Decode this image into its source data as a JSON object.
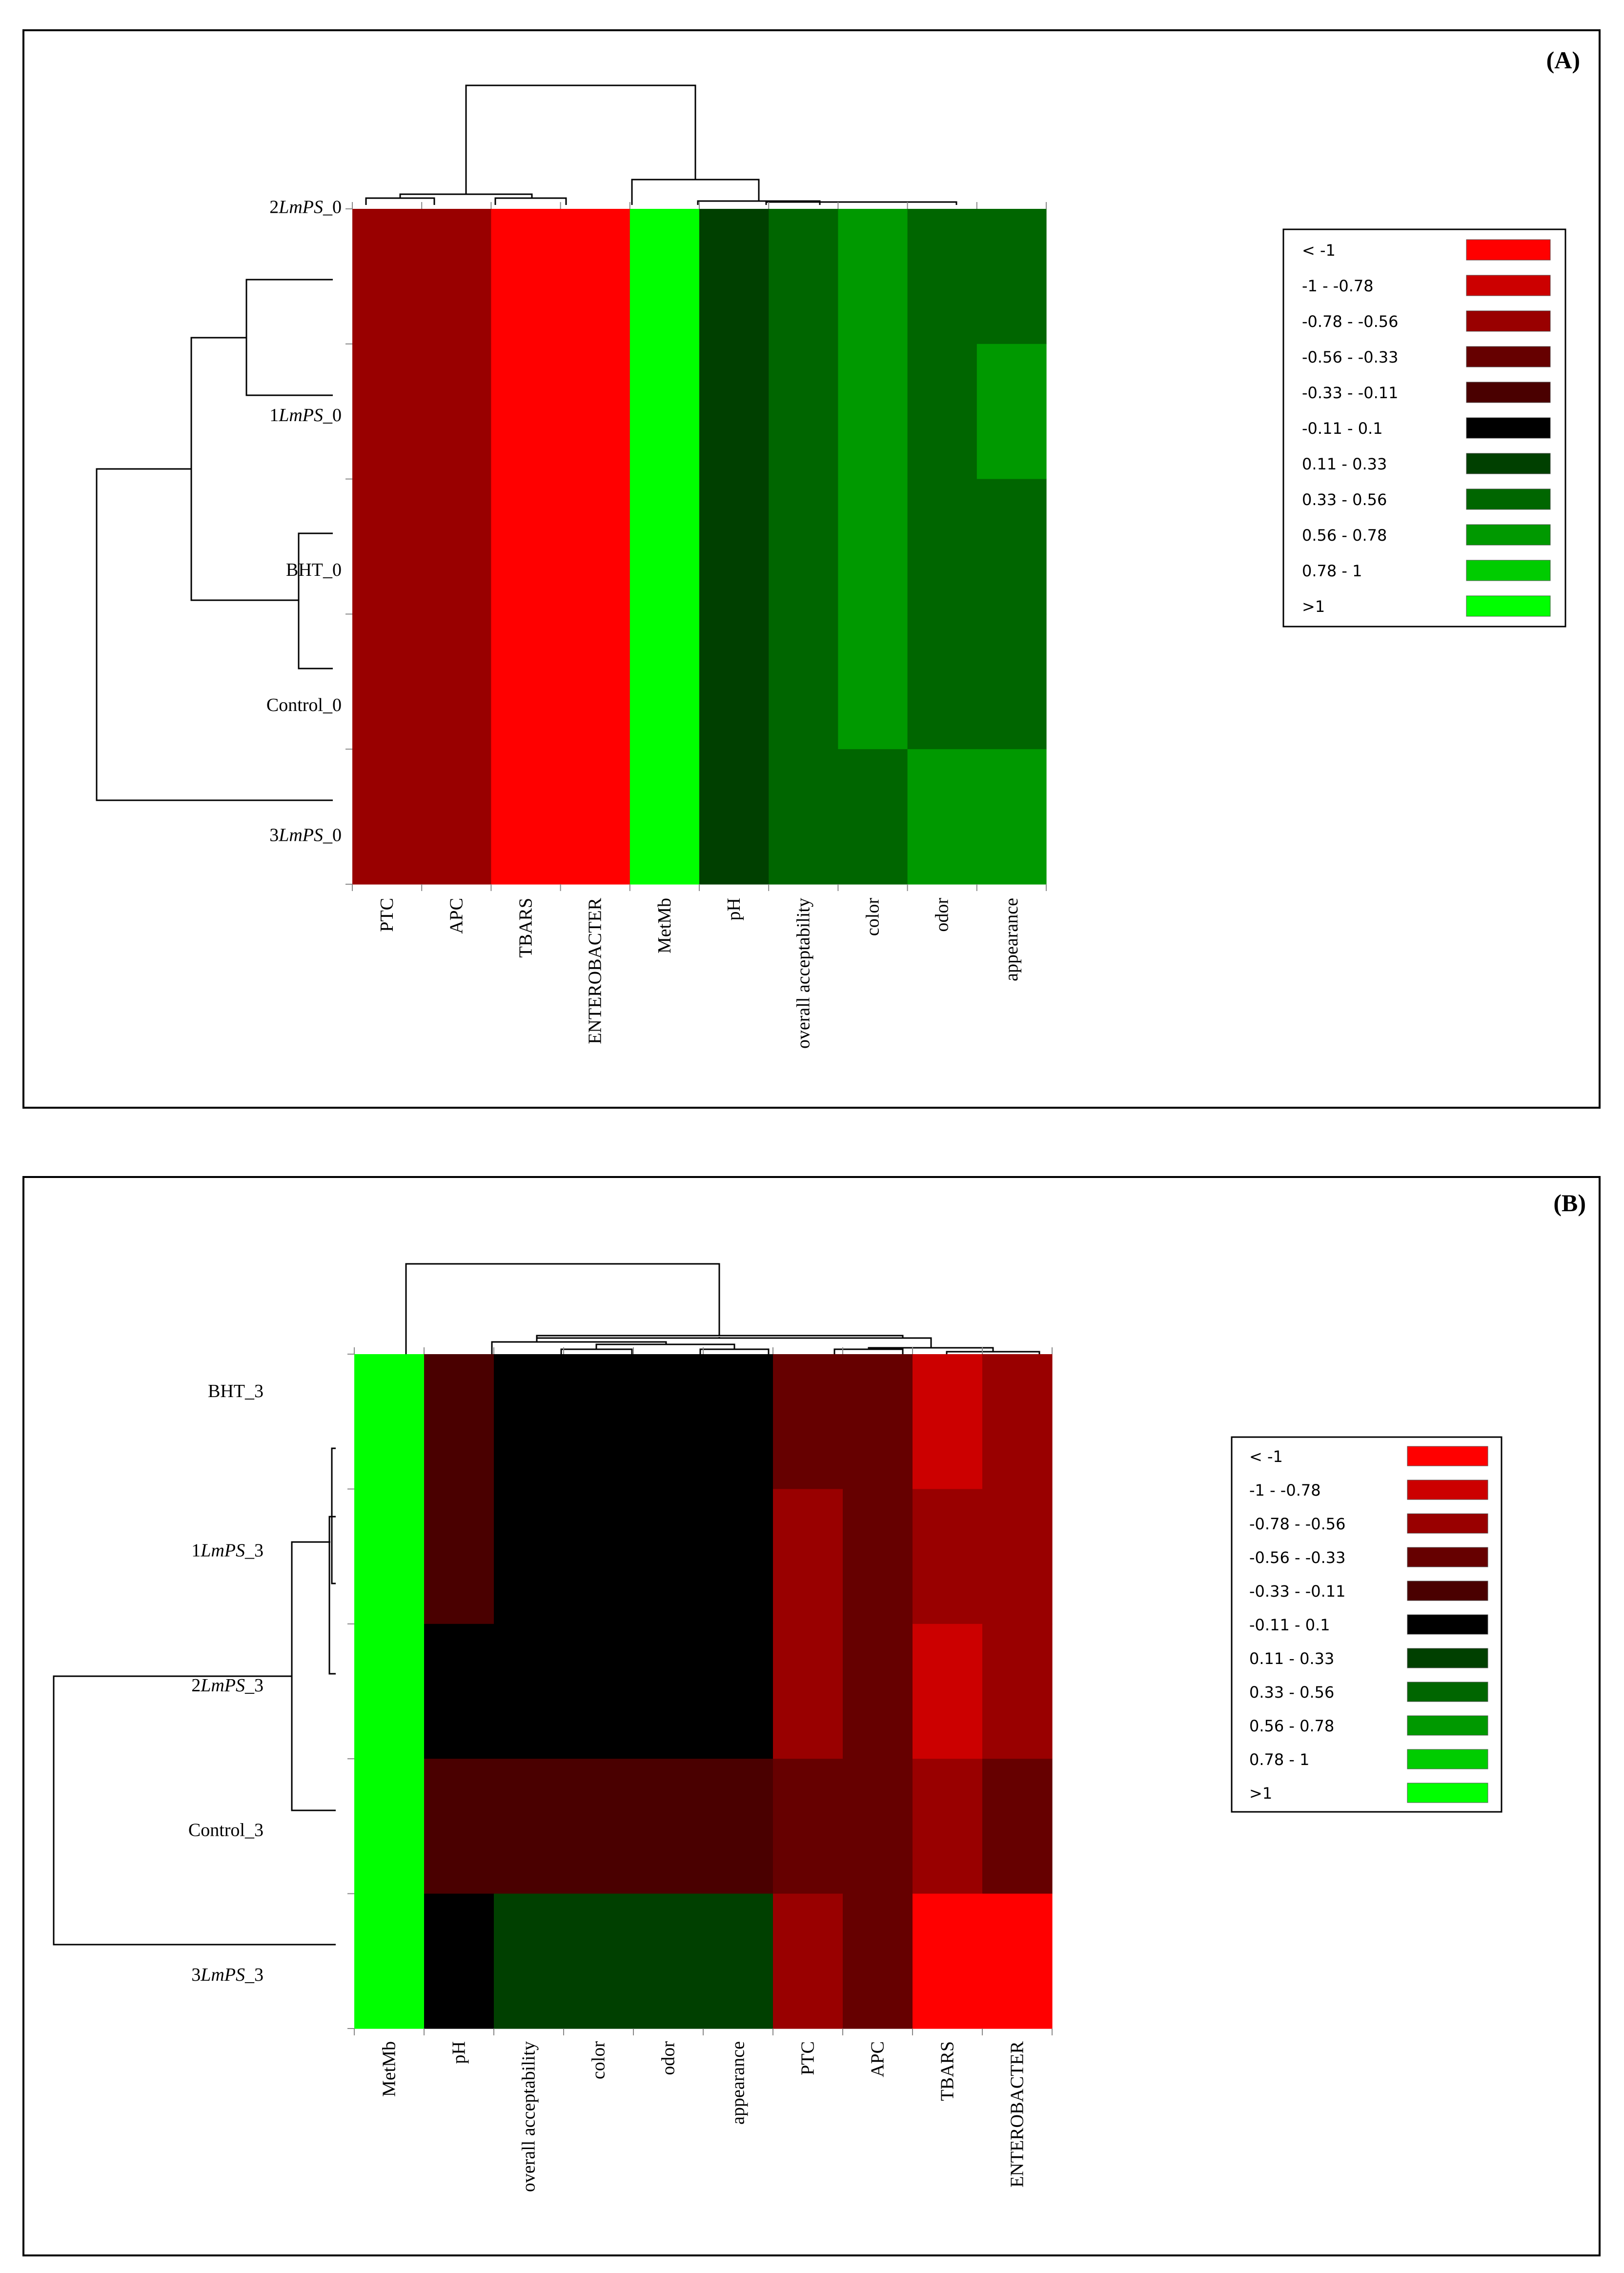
{
  "legend": {
    "entries": [
      "< -1",
      "-1 - -0.78",
      "-0.78 - -0.56",
      "-0.56 - -0.33",
      "-0.33 - -0.11",
      "-0.11 - 0.1",
      "0.11 - 0.33",
      "0.33 - 0.56",
      "0.56 - 0.78",
      "0.78 - 1",
      ">1"
    ],
    "colors": [
      "#ff0000",
      "#cc0000",
      "#990000",
      "#660000",
      "#4a0000",
      "#000000",
      "#004000",
      "#006600",
      "#009900",
      "#00cc00",
      "#00ff00"
    ]
  },
  "chart_data": [
    {
      "type": "heatmap",
      "panel": "(A)",
      "rows": [
        {
          "label": "2",
          "italic": "LmPS",
          "suffix": "_0"
        },
        {
          "label": "1",
          "italic": "LmPS",
          "suffix": "_0"
        },
        {
          "label": "BHT_0",
          "italic": "",
          "suffix": ""
        },
        {
          "label": "Control_0",
          "italic": "",
          "suffix": ""
        },
        {
          "label": "3",
          "italic": "LmPS",
          "suffix": "_0"
        }
      ],
      "columns": [
        "PTC",
        "APC",
        "TBARS",
        "ENTEROBACTER",
        "MetMb",
        "pH",
        "overall acceptability",
        "color",
        "odor",
        "appearance"
      ],
      "values": [
        [
          -0.67,
          -0.67,
          -1.2,
          -1.2,
          1.2,
          0.22,
          0.45,
          0.67,
          0.45,
          0.45
        ],
        [
          -0.67,
          -0.67,
          -1.2,
          -1.2,
          1.2,
          0.22,
          0.45,
          0.67,
          0.45,
          0.67
        ],
        [
          -0.67,
          -0.67,
          -1.2,
          -1.2,
          1.2,
          0.22,
          0.45,
          0.67,
          0.45,
          0.45
        ],
        [
          -0.67,
          -0.67,
          -1.2,
          -1.2,
          1.2,
          0.22,
          0.45,
          0.67,
          0.45,
          0.45
        ],
        [
          -0.67,
          -0.67,
          -1.2,
          -1.2,
          1.2,
          0.22,
          0.45,
          0.45,
          0.67,
          0.67
        ]
      ],
      "color_scale": "legend"
    },
    {
      "type": "heatmap",
      "panel": "(B)",
      "rows": [
        {
          "label": "BHT_3",
          "italic": "",
          "suffix": ""
        },
        {
          "label": "1",
          "italic": "LmPS",
          "suffix": "_3"
        },
        {
          "label": "2",
          "italic": "LmPS",
          "suffix": "_3"
        },
        {
          "label": "Control_3",
          "italic": "",
          "suffix": ""
        },
        {
          "label": "3",
          "italic": "LmPS",
          "suffix": "_3"
        }
      ],
      "columns": [
        "MetMb",
        "pH",
        "overall acceptability",
        "color",
        "odor",
        "appearance",
        "PTC",
        "APC",
        "TBARS",
        "ENTEROBACTER"
      ],
      "values": [
        [
          1.2,
          -0.22,
          0.0,
          0.0,
          0.0,
          0.0,
          -0.45,
          -0.45,
          -0.89,
          -0.67
        ],
        [
          1.2,
          -0.22,
          0.0,
          0.0,
          0.0,
          0.0,
          -0.67,
          -0.45,
          -0.67,
          -0.67
        ],
        [
          1.2,
          0.0,
          0.0,
          0.0,
          0.0,
          0.0,
          -0.67,
          -0.45,
          -0.89,
          -0.67
        ],
        [
          1.2,
          -0.22,
          -0.22,
          -0.22,
          -0.22,
          -0.22,
          -0.45,
          -0.45,
          -0.67,
          -0.45
        ],
        [
          1.2,
          0.0,
          0.22,
          0.22,
          0.22,
          0.22,
          -0.67,
          -0.45,
          -1.2,
          -1.2
        ]
      ],
      "color_scale": "legend"
    }
  ]
}
